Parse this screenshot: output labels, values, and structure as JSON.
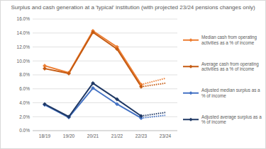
{
  "chart_data": {
    "type": "line",
    "title": "Surplus and cash generation at a 'typical' institution (with projected 23/24 pensions changes only)",
    "categories": [
      "18/19",
      "19/20",
      "20/21",
      "21/22",
      "22/23",
      "23/24"
    ],
    "ylim": [
      0,
      16
    ],
    "yticks": [
      {
        "value": 0,
        "label": "0.0%"
      },
      {
        "value": 2,
        "label": "2.0%"
      },
      {
        "value": 4,
        "label": "4.0%"
      },
      {
        "value": 6,
        "label": "6.0%"
      },
      {
        "value": 8,
        "label": "8.0%"
      },
      {
        "value": 10,
        "label": "10.0%"
      },
      {
        "value": 12,
        "label": "12.0%"
      },
      {
        "value": 14,
        "label": "14.0%"
      },
      {
        "value": 16,
        "label": "16.0%"
      }
    ],
    "grid": true,
    "legend": "right",
    "series": [
      {
        "name": "Median cash from operating activities as a % of income",
        "color": "#ed7d31",
        "marker": "diamond",
        "line_style": "solid",
        "values": [
          9.3,
          8.3,
          14.3,
          12.0,
          6.6,
          null
        ]
      },
      {
        "name": "Average cash from operating activities as a % of income",
        "color": "#c55a11",
        "marker": "diamond",
        "line_style": "solid",
        "values": [
          8.9,
          8.2,
          14.1,
          11.7,
          6.3,
          null
        ]
      },
      {
        "name": "Adjusted median surplus as a % of income",
        "color": "#4472c4",
        "marker": "diamond",
        "line_style": "solid",
        "values": [
          3.7,
          1.9,
          6.1,
          3.8,
          1.8,
          null
        ]
      },
      {
        "name": "Adjusted average surplus as a % of income",
        "color": "#1f3864",
        "marker": "diamond",
        "line_style": "solid",
        "values": [
          3.8,
          2.0,
          6.8,
          4.5,
          2.1,
          null
        ]
      },
      {
        "color": "#ed7d31",
        "marker": "none",
        "line_style": "dotted",
        "values": [
          null,
          null,
          null,
          null,
          6.6,
          7.5
        ]
      },
      {
        "color": "#c55a11",
        "marker": "none",
        "line_style": "dotted",
        "values": [
          null,
          null,
          null,
          null,
          6.3,
          6.8
        ]
      },
      {
        "color": "#4472c4",
        "marker": "none",
        "line_style": "dotted",
        "values": [
          null,
          null,
          null,
          null,
          1.8,
          2.2
        ]
      },
      {
        "color": "#1f3864",
        "marker": "none",
        "line_style": "dotted",
        "values": [
          null,
          null,
          null,
          null,
          2.1,
          2.6
        ]
      }
    ]
  }
}
